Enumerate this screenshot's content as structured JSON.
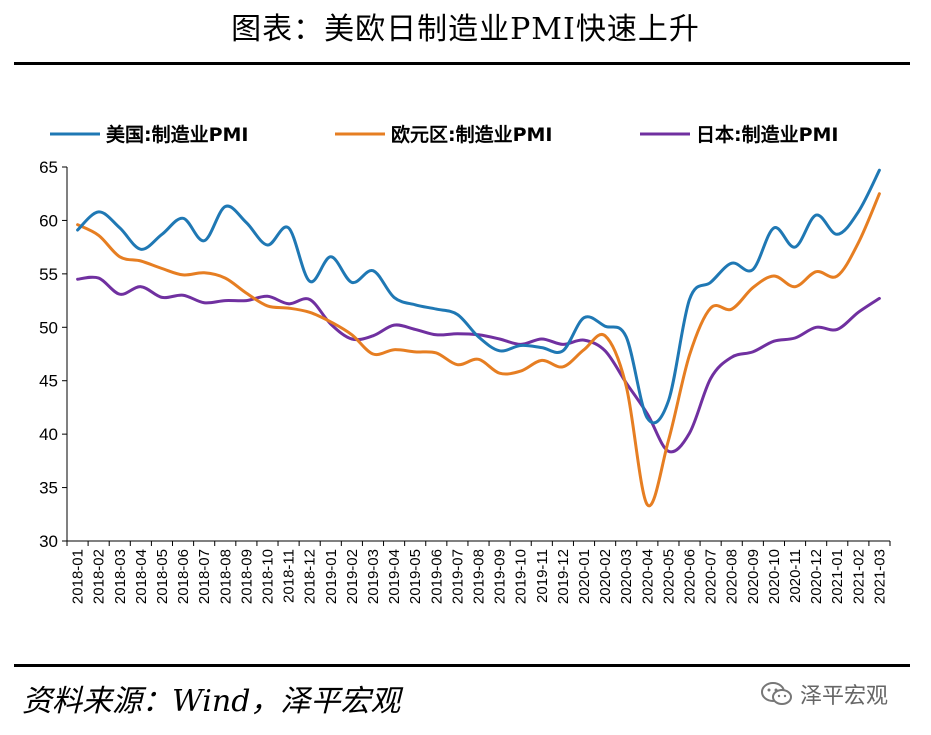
{
  "title": "图表：美欧日制造业PMI快速上升",
  "source": "资料来源：Wind，泽平宏观",
  "watermark": "泽平宏观",
  "chart_data": {
    "type": "line",
    "title": "图表：美欧日制造业PMI快速上升",
    "xlabel": "",
    "ylabel": "",
    "ylim": [
      30,
      65
    ],
    "yticks": [
      30,
      35,
      40,
      45,
      50,
      55,
      60,
      65
    ],
    "legend_position": "top",
    "grid": false,
    "categories": [
      "2018-01",
      "2018-02",
      "2018-03",
      "2018-04",
      "2018-05",
      "2018-06",
      "2018-07",
      "2018-08",
      "2018-09",
      "2018-10",
      "2018-11",
      "2018-12",
      "2019-01",
      "2019-02",
      "2019-03",
      "2019-04",
      "2019-05",
      "2019-06",
      "2019-07",
      "2019-08",
      "2019-09",
      "2019-10",
      "2019-11",
      "2019-12",
      "2020-01",
      "2020-02",
      "2020-03",
      "2020-04",
      "2020-05",
      "2020-06",
      "2020-07",
      "2020-08",
      "2020-09",
      "2020-10",
      "2020-11",
      "2020-12",
      "2021-01",
      "2021-02",
      "2021-03"
    ],
    "series": [
      {
        "name": "美国:制造业PMI",
        "color": "#1f78b4",
        "values": [
          59.1,
          60.8,
          59.3,
          57.3,
          58.7,
          60.2,
          58.1,
          61.3,
          59.8,
          57.7,
          59.3,
          54.3,
          56.6,
          54.2,
          55.3,
          52.8,
          52.1,
          51.7,
          51.2,
          49.1,
          47.8,
          48.3,
          48.1,
          47.8,
          50.9,
          50.1,
          49.1,
          41.5,
          43.1,
          52.6,
          54.2,
          56.0,
          55.4,
          59.3,
          57.5,
          60.5,
          58.7,
          60.8,
          64.7
        ]
      },
      {
        "name": "欧元区:制造业PMI",
        "color": "#e67e22",
        "values": [
          59.6,
          58.6,
          56.6,
          56.2,
          55.5,
          54.9,
          55.1,
          54.6,
          53.2,
          52.0,
          51.8,
          51.4,
          50.5,
          49.3,
          47.5,
          47.9,
          47.7,
          47.6,
          46.5,
          47.0,
          45.7,
          45.9,
          46.9,
          46.3,
          47.9,
          49.2,
          44.5,
          33.4,
          39.4,
          47.4,
          51.8,
          51.7,
          53.7,
          54.8,
          53.8,
          55.2,
          54.8,
          57.9,
          62.5
        ]
      },
      {
        "name": "日本:制造业PMI",
        "color": "#7030a0",
        "values": [
          54.5,
          54.6,
          53.1,
          53.8,
          52.8,
          53.0,
          52.3,
          52.5,
          52.5,
          52.9,
          52.2,
          52.6,
          50.3,
          48.9,
          49.2,
          50.2,
          49.8,
          49.3,
          49.4,
          49.3,
          48.9,
          48.4,
          48.9,
          48.4,
          48.8,
          47.8,
          44.8,
          41.9,
          38.4,
          40.1,
          45.2,
          47.2,
          47.7,
          48.7,
          49.0,
          50.0,
          49.8,
          51.4,
          52.7
        ]
      }
    ]
  }
}
